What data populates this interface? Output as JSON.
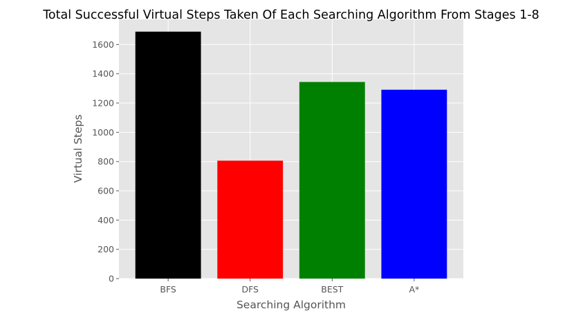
{
  "chart_data": {
    "type": "bar",
    "title": "Total Successful Virtual Steps Taken Of Each Searching Algorithm From Stages 1-8",
    "xlabel": "Searching Algorithm",
    "ylabel": "Virtual Steps",
    "categories": [
      "BFS",
      "DFS",
      "BEST",
      "A*"
    ],
    "values": [
      1688,
      806,
      1344,
      1291
    ],
    "colors": [
      "#000000",
      "#ff0000",
      "#008000",
      "#0000ff"
    ],
    "ylim": [
      0,
      1772
    ],
    "yticks": [
      0,
      200,
      400,
      600,
      800,
      1000,
      1200,
      1400,
      1600
    ],
    "grid": true,
    "style": {
      "plot_background": "#e5e5e5",
      "grid_color": "#ffffff"
    }
  }
}
